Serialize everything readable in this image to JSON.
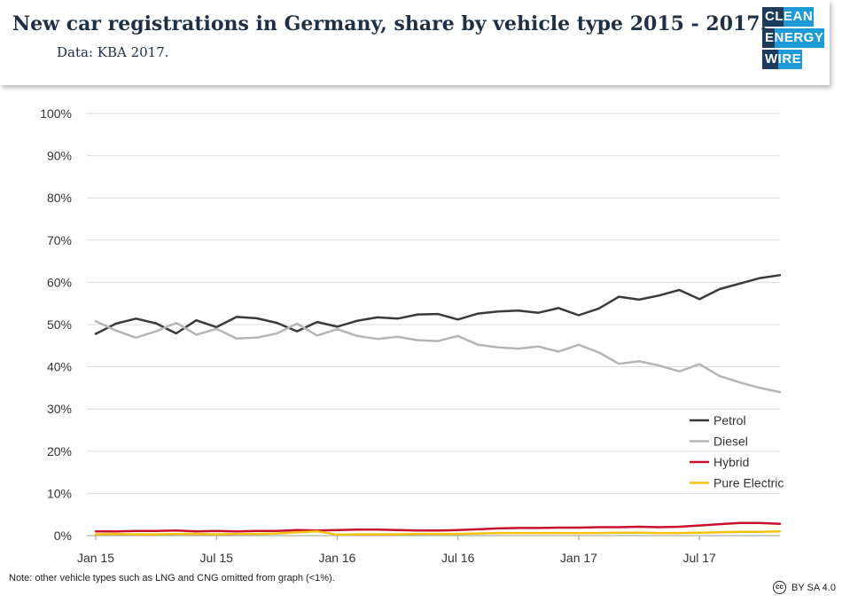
{
  "header": {
    "title": "New car registrations in Germany, share by vehicle type 2015 - 2017.",
    "subtitle": "Data: KBA 2017."
  },
  "logo": {
    "line1a": "CL",
    "line1b": "EAN",
    "line2a": "E",
    "line2b": "NERGY",
    "line3a": "W",
    "line3b": "IRE",
    "brand_color": "#1b3a5c",
    "accent_color": "#1e9bd7"
  },
  "footer": {
    "note": "Note: other vehicle types such as LNG and CNG omitted from graph (<1%).",
    "license_icon": "cc-icon",
    "license_icon_text": "cc",
    "license": "BY SA 4.0"
  },
  "chart_data": {
    "type": "line",
    "x": [
      "Jan 15",
      "Feb 15",
      "Mar 15",
      "Apr 15",
      "May 15",
      "Jun 15",
      "Jul 15",
      "Aug 15",
      "Sep 15",
      "Oct 15",
      "Nov 15",
      "Dec 15",
      "Jan 16",
      "Feb 16",
      "Mar 16",
      "Apr 16",
      "May 16",
      "Jun 16",
      "Jul 16",
      "Aug 16",
      "Sep 16",
      "Oct 16",
      "Nov 16",
      "Dec 16",
      "Jan 17",
      "Feb 17",
      "Mar 17",
      "Apr 17",
      "May 17",
      "Jun 17",
      "Jul 17",
      "Aug 17",
      "Sep 17",
      "Oct 17",
      "Nov 17"
    ],
    "x_tick_labels": [
      "Jan 15",
      "Jul 15",
      "Jan 16",
      "Jul 16",
      "Jan 17",
      "Jul 17"
    ],
    "x_tick_indices": [
      0,
      6,
      12,
      18,
      24,
      30
    ],
    "ylim": [
      0,
      100
    ],
    "y_ticks": [
      0,
      10,
      20,
      30,
      40,
      50,
      60,
      70,
      80,
      90,
      100
    ],
    "y_tick_format": "%",
    "grid": "horizontal",
    "legend_position": "bottom-right",
    "series": [
      {
        "name": "Petrol",
        "color": "#3a3a3a",
        "values": [
          47.8,
          50.2,
          51.4,
          50.3,
          47.9,
          51.0,
          49.4,
          51.8,
          51.5,
          50.4,
          48.4,
          50.6,
          49.5,
          50.9,
          51.7,
          51.4,
          52.4,
          52.5,
          51.2,
          52.6,
          53.1,
          53.3,
          52.8,
          53.9,
          52.2,
          53.8,
          56.6,
          55.9,
          56.9,
          58.2,
          56.0,
          58.4,
          59.7,
          61.0,
          61.7
        ]
      },
      {
        "name": "Diesel",
        "color": "#b5b5b5",
        "values": [
          50.8,
          48.6,
          46.9,
          48.4,
          50.4,
          47.6,
          49.0,
          46.7,
          46.9,
          47.9,
          50.2,
          47.4,
          48.9,
          47.3,
          46.6,
          47.1,
          46.3,
          46.1,
          47.3,
          45.2,
          44.6,
          44.3,
          44.8,
          43.6,
          45.2,
          43.4,
          40.7,
          41.3,
          40.3,
          38.9,
          40.6,
          37.8,
          36.3,
          35.0,
          34.0
        ]
      },
      {
        "name": "Hybrid",
        "color": "#c8102e",
        "values": [
          1.0,
          1.0,
          1.1,
          1.1,
          1.2,
          1.0,
          1.1,
          1.0,
          1.1,
          1.1,
          1.3,
          1.2,
          1.3,
          1.4,
          1.4,
          1.3,
          1.2,
          1.2,
          1.3,
          1.5,
          1.7,
          1.8,
          1.8,
          1.9,
          1.9,
          2.0,
          2.0,
          2.1,
          2.0,
          2.1,
          2.4,
          2.7,
          3.0,
          3.0,
          2.8
        ]
      },
      {
        "name": "Pure Electric",
        "color": "#f4c20d",
        "values": [
          0.3,
          0.4,
          0.3,
          0.3,
          0.4,
          0.4,
          0.3,
          0.4,
          0.4,
          0.5,
          0.8,
          1.0,
          0.2,
          0.3,
          0.3,
          0.3,
          0.4,
          0.4,
          0.4,
          0.5,
          0.6,
          0.6,
          0.6,
          0.6,
          0.6,
          0.6,
          0.7,
          0.7,
          0.6,
          0.6,
          0.7,
          0.8,
          0.9,
          0.9,
          1.0
        ]
      }
    ]
  }
}
